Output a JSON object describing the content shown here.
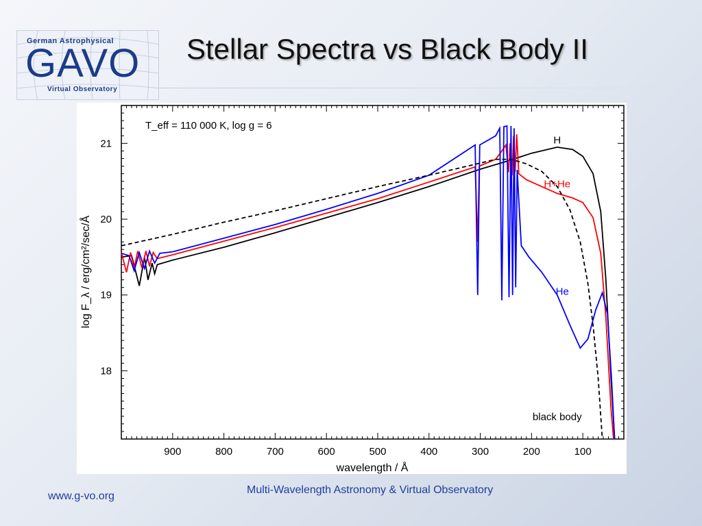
{
  "logo": {
    "top_text": "German Astrophysical",
    "main_text": "GAVO",
    "bottom_text": "Virtual Observatory"
  },
  "slide": {
    "title": "Stellar Spectra vs Black Body II",
    "footer_left": "www.g-vo.org",
    "footer_center": "Multi-Wavelength Astronomy & Virtual Observatory"
  },
  "chart_data": {
    "type": "line",
    "annotation": "T_eff = 110 000 K, log g = 6",
    "xlabel": "wavelength / Å",
    "ylabel": "log F_λ / erg/cm²/sec/Å",
    "xlim": [
      1000,
      20
    ],
    "ylim": [
      17.1,
      21.5
    ],
    "x_ticks": [
      900,
      800,
      700,
      600,
      500,
      400,
      300,
      200,
      100
    ],
    "y_ticks": [
      18,
      19,
      20,
      21
    ],
    "x_reversed": true,
    "grid": false,
    "series": [
      {
        "name": "H",
        "color": "#000000",
        "dash": "solid",
        "points": [
          [
            1000,
            19.5
          ],
          [
            980,
            19.52
          ],
          [
            965,
            19.12
          ],
          [
            955,
            19.5
          ],
          [
            948,
            19.2
          ],
          [
            940,
            19.42
          ],
          [
            935,
            19.28
          ],
          [
            930,
            19.4
          ],
          [
            900,
            19.46
          ],
          [
            800,
            19.63
          ],
          [
            700,
            19.82
          ],
          [
            600,
            20.02
          ],
          [
            500,
            20.22
          ],
          [
            400,
            20.43
          ],
          [
            300,
            20.66
          ],
          [
            250,
            20.76
          ],
          [
            200,
            20.87
          ],
          [
            150,
            20.95
          ],
          [
            120,
            20.92
          ],
          [
            100,
            20.83
          ],
          [
            80,
            20.6
          ],
          [
            65,
            20.1
          ],
          [
            55,
            19.2
          ],
          [
            45,
            17.9
          ],
          [
            38,
            17.1
          ]
        ]
      },
      {
        "name": "H+He",
        "color": "#ff0000",
        "dash": "solid",
        "points": [
          [
            1000,
            19.56
          ],
          [
            990,
            19.3
          ],
          [
            982,
            19.56
          ],
          [
            975,
            19.35
          ],
          [
            968,
            19.58
          ],
          [
            960,
            19.36
          ],
          [
            952,
            19.58
          ],
          [
            945,
            19.38
          ],
          [
            938,
            19.56
          ],
          [
            930,
            19.48
          ],
          [
            900,
            19.53
          ],
          [
            800,
            19.71
          ],
          [
            700,
            19.89
          ],
          [
            600,
            20.08
          ],
          [
            500,
            20.27
          ],
          [
            400,
            20.49
          ],
          [
            310,
            20.69
          ],
          [
            305,
            19.7
          ],
          [
            302,
            20.7
          ],
          [
            270,
            20.79
          ],
          [
            260,
            20.88
          ],
          [
            250,
            20.98
          ],
          [
            245,
            20.62
          ],
          [
            242,
            21.0
          ],
          [
            238,
            20.58
          ],
          [
            235,
            21.1
          ],
          [
            232,
            20.62
          ],
          [
            229,
            21.12
          ],
          [
            225,
            20.6
          ],
          [
            210,
            20.52
          ],
          [
            180,
            20.43
          ],
          [
            150,
            20.34
          ],
          [
            120,
            20.28
          ],
          [
            100,
            20.22
          ],
          [
            80,
            20.02
          ],
          [
            65,
            19.55
          ],
          [
            55,
            18.7
          ],
          [
            45,
            17.5
          ],
          [
            40,
            17.1
          ]
        ]
      },
      {
        "name": "He",
        "color": "#0000ff",
        "dash": "solid",
        "points": [
          [
            1000,
            19.55
          ],
          [
            985,
            19.52
          ],
          [
            975,
            19.32
          ],
          [
            965,
            19.56
          ],
          [
            955,
            19.35
          ],
          [
            945,
            19.58
          ],
          [
            935,
            19.42
          ],
          [
            925,
            19.55
          ],
          [
            900,
            19.57
          ],
          [
            800,
            19.75
          ],
          [
            700,
            19.93
          ],
          [
            600,
            20.13
          ],
          [
            500,
            20.34
          ],
          [
            400,
            20.58
          ],
          [
            310,
            20.98
          ],
          [
            305,
            19.0
          ],
          [
            301,
            20.98
          ],
          [
            270,
            21.1
          ],
          [
            262,
            21.2
          ],
          [
            258,
            18.93
          ],
          [
            254,
            21.22
          ],
          [
            248,
            21.23
          ],
          [
            244,
            18.97
          ],
          [
            240,
            21.23
          ],
          [
            237,
            19.0
          ],
          [
            234,
            21.2
          ],
          [
            231,
            19.1
          ],
          [
            228,
            20.65
          ],
          [
            220,
            19.65
          ],
          [
            205,
            19.5
          ],
          [
            180,
            19.3
          ],
          [
            150,
            19.0
          ],
          [
            125,
            18.6
          ],
          [
            105,
            18.3
          ],
          [
            90,
            18.42
          ],
          [
            75,
            18.8
          ],
          [
            62,
            19.03
          ],
          [
            52,
            18.75
          ],
          [
            44,
            17.9
          ],
          [
            38,
            17.1
          ]
        ]
      },
      {
        "name": "black body",
        "color": "#000000",
        "dash": "dashed",
        "points": [
          [
            1000,
            19.65
          ],
          [
            900,
            19.8
          ],
          [
            800,
            19.96
          ],
          [
            700,
            20.11
          ],
          [
            600,
            20.27
          ],
          [
            500,
            20.43
          ],
          [
            400,
            20.58
          ],
          [
            300,
            20.74
          ],
          [
            270,
            20.79
          ],
          [
            240,
            20.79
          ],
          [
            210,
            20.73
          ],
          [
            180,
            20.63
          ],
          [
            150,
            20.43
          ],
          [
            125,
            20.12
          ],
          [
            105,
            19.7
          ],
          [
            90,
            19.15
          ],
          [
            80,
            18.6
          ],
          [
            70,
            17.9
          ],
          [
            62,
            17.1
          ]
        ]
      }
    ],
    "series_labels": [
      "H",
      "H+He",
      "He",
      "black body"
    ]
  }
}
